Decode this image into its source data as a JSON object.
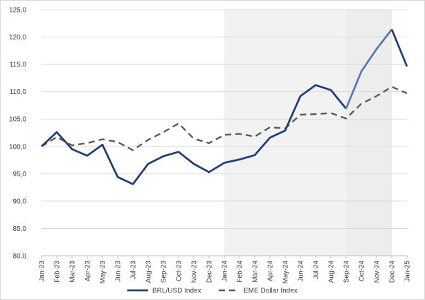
{
  "chart_data": {
    "type": "line",
    "categories": [
      "Jan-23",
      "Feb-23",
      "Mar-23",
      "Apr-23",
      "May-23",
      "Jun-23",
      "Jul-23",
      "Aug-23",
      "Sep-23",
      "Oct-23",
      "Nov-23",
      "Dec-23",
      "Jan-24",
      "Feb-24",
      "Mar-24",
      "Apr-24",
      "May-24",
      "Jun-24",
      "Jul-24",
      "Aug-24",
      "Sep-24",
      "Oct-24",
      "Nov-24",
      "Dec-24",
      "Jan-25"
    ],
    "series": [
      {
        "name": "BRL/USD Index",
        "style": "solid",
        "color": "#1f3f75",
        "values": [
          100.0,
          102.6,
          99.5,
          98.3,
          100.3,
          94.4,
          93.1,
          96.8,
          98.2,
          99.0,
          96.8,
          95.3,
          97.0,
          97.6,
          98.4,
          101.6,
          102.9,
          109.2,
          111.2,
          110.3,
          106.9,
          113.7,
          117.8,
          121.4,
          114.6
        ]
      },
      {
        "name": "EME Dollar Index",
        "style": "dashed",
        "color": "#595959",
        "values": [
          100.0,
          101.7,
          100.2,
          100.6,
          101.3,
          100.8,
          99.3,
          101.2,
          102.6,
          104.2,
          101.4,
          100.6,
          102.1,
          102.3,
          101.8,
          103.5,
          103.3,
          105.8,
          105.9,
          106.1,
          105.1,
          107.8,
          109.2,
          110.9,
          109.7
        ]
      }
    ],
    "ylim": [
      80,
      125
    ],
    "yticks": [
      80,
      85,
      90,
      95,
      100,
      105,
      110,
      115,
      120,
      125
    ],
    "ytick_labels": [
      "80,0",
      "85,0",
      "90,0",
      "95,0",
      "100,0",
      "105,0",
      "110,0",
      "115,0",
      "120,0",
      "125,0"
    ],
    "grid": true,
    "legend_position": "bottom",
    "shaded_ranges": [
      {
        "from": "Jan-24",
        "to": "Sep-24",
        "color": "#f2f2f2"
      },
      {
        "from": "Sep-24",
        "to": "Dec-24",
        "color": "#ededed"
      }
    ],
    "highlight_color": "#5b79a8",
    "title": "",
    "xlabel": "",
    "ylabel": ""
  }
}
